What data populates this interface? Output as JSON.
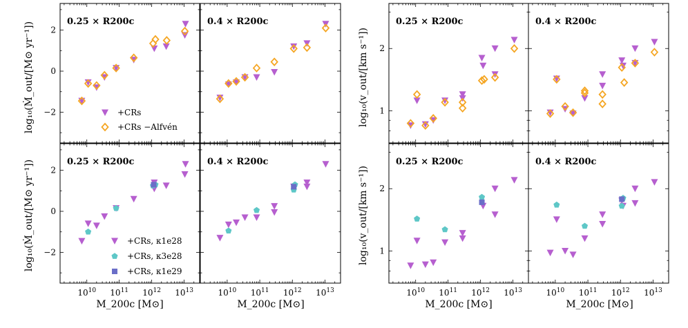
{
  "figure": {
    "left_ylabel": "log₁₀(Ṁ_out/[M⊙ yr⁻¹])",
    "right_ylabel": "log₁₀(v_out/[km s⁻¹])",
    "xlabel": "M_200c [M⊙]"
  },
  "colors": {
    "crs": "#b65fcf",
    "alfven": "#f5a623",
    "k3e28": "#5ec7c7",
    "k1e29": "#6a6ec8"
  },
  "legends": {
    "top": [
      "+CRs",
      "+CRs −Alfvén"
    ],
    "bottom": [
      "+CRs, κ1e28",
      "+CRs, κ3e28",
      "+CRs, κ1e29"
    ]
  },
  "chart_data": [
    {
      "id": "mdot-top-025",
      "type": "scatter",
      "panel_label": "0.25 × R200c",
      "xscale": "log",
      "xlim": [
        1500000000.0,
        30000000000000.0
      ],
      "ylim": [
        -3.5,
        3.3
      ],
      "series": [
        {
          "name": "+CRs",
          "marker": "triangle-down",
          "color_key": "crs",
          "points": [
            [
              7000000000.0,
              -1.45
            ],
            [
              11000000000.0,
              -0.55
            ],
            [
              20000000000.0,
              -0.8
            ],
            [
              35000000000.0,
              -0.3
            ],
            [
              80000000000.0,
              0.15
            ],
            [
              280000000000.0,
              0.55
            ],
            [
              1200000000000.0,
              1.1
            ],
            [
              2800000000000.0,
              1.2
            ],
            [
              11000000000000.0,
              2.3
            ],
            [
              10500000000000.0,
              1.75
            ]
          ]
        },
        {
          "name": "+CRs −Alfvén",
          "marker": "diamond-open",
          "color_key": "alfven",
          "points": [
            [
              7000000000.0,
              -1.45
            ],
            [
              11000000000.0,
              -0.6
            ],
            [
              20000000000.0,
              -0.7
            ],
            [
              35000000000.0,
              -0.2
            ],
            [
              80000000000.0,
              0.15
            ],
            [
              280000000000.0,
              0.65
            ],
            [
              1100000000000.0,
              1.35
            ],
            [
              1300000000000.0,
              1.55
            ],
            [
              2900000000000.0,
              1.5
            ],
            [
              10500000000000.0,
              1.95
            ]
          ]
        }
      ]
    },
    {
      "id": "mdot-top-04",
      "type": "scatter",
      "panel_label": "0.4 × R200c",
      "xscale": "log",
      "xlim": [
        1500000000.0,
        30000000000000.0
      ],
      "ylim": [
        -3.5,
        3.3
      ],
      "series": [
        {
          "name": "+CRs",
          "marker": "triangle-down",
          "color_key": "crs",
          "points": [
            [
              6000000000.0,
              -1.3
            ],
            [
              11000000000.0,
              -0.65
            ],
            [
              19000000000.0,
              -0.55
            ],
            [
              35000000000.0,
              -0.3
            ],
            [
              80000000000.0,
              -0.3
            ],
            [
              280000000000.0,
              -0.05
            ],
            [
              1100000000000.0,
              1.2
            ],
            [
              2800000000000.0,
              1.35
            ],
            [
              10500000000000.0,
              2.3
            ]
          ]
        },
        {
          "name": "+CRs −Alfvén",
          "marker": "diamond-open",
          "color_key": "alfven",
          "points": [
            [
              6000000000.0,
              -1.35
            ],
            [
              11000000000.0,
              -0.6
            ],
            [
              19000000000.0,
              -0.5
            ],
            [
              35000000000.0,
              -0.3
            ],
            [
              80000000000.0,
              0.15
            ],
            [
              280000000000.0,
              0.45
            ],
            [
              1100000000000.0,
              1.1
            ],
            [
              2800000000000.0,
              1.15
            ],
            [
              10500000000000.0,
              2.1
            ]
          ]
        }
      ]
    },
    {
      "id": "vout-top-025",
      "type": "scatter",
      "panel_label": "0.25 × R200c",
      "xscale": "log",
      "yscale": "log",
      "xlim": [
        1500000000.0,
        30000000000000.0
      ],
      "ylim": [
        0.7,
        3.3
      ],
      "yticks": [
        1,
        2
      ],
      "series": [
        {
          "name": "+CRs",
          "marker": "triangle-down",
          "color_key": "crs",
          "points": [
            [
              7000000000.0,
              0.85
            ],
            [
              11000000000.0,
              1.12
            ],
            [
              20000000000.0,
              0.86
            ],
            [
              35000000000.0,
              0.9
            ],
            [
              80000000000.0,
              1.12
            ],
            [
              280000000000.0,
              1.2
            ],
            [
              280000000000.0,
              1.15
            ],
            [
              1100000000000.0,
              1.8
            ],
            [
              1200000000000.0,
              1.65
            ],
            [
              2800000000000.0,
              2.0
            ],
            [
              2800000000000.0,
              1.5
            ],
            [
              11000000000000.0,
              2.2
            ]
          ]
        },
        {
          "name": "+CRs −Alfvén",
          "marker": "diamond-open",
          "color_key": "alfven",
          "points": [
            [
              7000000000.0,
              0.87
            ],
            [
              11000000000.0,
              1.2
            ],
            [
              20000000000.0,
              0.85
            ],
            [
              35000000000.0,
              0.92
            ],
            [
              80000000000.0,
              1.1
            ],
            [
              280000000000.0,
              1.1
            ],
            [
              280000000000.0,
              1.03
            ],
            [
              1100000000000.0,
              1.4
            ],
            [
              1300000000000.0,
              1.42
            ],
            [
              2800000000000.0,
              1.45
            ],
            [
              11000000000000.0,
              2.0
            ]
          ]
        }
      ]
    },
    {
      "id": "vout-top-04",
      "type": "scatter",
      "panel_label": "0.4 × R200c",
      "xscale": "log",
      "yscale": "log",
      "xlim": [
        1500000000.0,
        30000000000000.0
      ],
      "ylim": [
        0.7,
        3.3
      ],
      "yticks": [
        1,
        2
      ],
      "series": [
        {
          "name": "+CRs",
          "marker": "triangle-down",
          "color_key": "crs",
          "points": [
            [
              7000000000.0,
              0.98
            ],
            [
              11000000000.0,
              1.43
            ],
            [
              20000000000.0,
              1.02
            ],
            [
              35000000000.0,
              0.97
            ],
            [
              80000000000.0,
              1.15
            ],
            [
              280000000000.0,
              1.5
            ],
            [
              280000000000.0,
              1.32
            ],
            [
              1100000000000.0,
              1.75
            ],
            [
              1200000000000.0,
              1.65
            ],
            [
              2800000000000.0,
              2.0
            ],
            [
              2800000000000.0,
              1.7
            ],
            [
              11000000000000.0,
              2.15
            ]
          ]
        },
        {
          "name": "+CRs −Alfvén",
          "marker": "diamond-open",
          "color_key": "alfven",
          "points": [
            [
              7000000000.0,
              0.97
            ],
            [
              11000000000.0,
              1.42
            ],
            [
              20000000000.0,
              1.05
            ],
            [
              35000000000.0,
              0.98
            ],
            [
              80000000000.0,
              1.25
            ],
            [
              80000000000.0,
              1.22
            ],
            [
              280000000000.0,
              1.2
            ],
            [
              280000000000.0,
              1.08
            ],
            [
              1100000000000.0,
              1.62
            ],
            [
              1300000000000.0,
              1.37
            ],
            [
              2800000000000.0,
              1.7
            ],
            [
              11000000000000.0,
              1.92
            ]
          ]
        }
      ]
    },
    {
      "id": "mdot-bottom-025",
      "type": "scatter",
      "panel_label": "0.25 × R200c",
      "xscale": "log",
      "xlim": [
        1500000000.0,
        30000000000000.0
      ],
      "ylim": [
        -3.5,
        3.3
      ],
      "series": [
        {
          "name": "+CRs, κ1e28",
          "marker": "triangle-down",
          "color_key": "crs",
          "points": [
            [
              7000000000.0,
              -1.45
            ],
            [
              11000000000.0,
              -0.6
            ],
            [
              20000000000.0,
              -0.7
            ],
            [
              35000000000.0,
              -0.25
            ],
            [
              80000000000.0,
              0.15
            ],
            [
              280000000000.0,
              0.6
            ],
            [
              1200000000000.0,
              1.4
            ],
            [
              1200000000000.0,
              1.1
            ],
            [
              2800000000000.0,
              1.25
            ],
            [
              11000000000000.0,
              2.3
            ],
            [
              10500000000000.0,
              1.8
            ]
          ]
        },
        {
          "name": "+CRs, κ3e28",
          "marker": "pentagon",
          "color_key": "k3e28",
          "points": [
            [
              11000000000.0,
              -1.0
            ],
            [
              80000000000.0,
              0.15
            ],
            [
              1100000000000.0,
              1.25
            ],
            [
              1300000000000.0,
              1.3
            ]
          ]
        },
        {
          "name": "+CRs, κ1e29",
          "marker": "square",
          "color_key": "k1e29",
          "points": [
            [
              1150000000000.0,
              1.3
            ]
          ]
        }
      ]
    },
    {
      "id": "mdot-bottom-04",
      "type": "scatter",
      "panel_label": "0.4 × R200c",
      "xscale": "log",
      "xlim": [
        1500000000.0,
        30000000000000.0
      ],
      "ylim": [
        -3.5,
        3.3
      ],
      "series": [
        {
          "name": "+CRs, κ1e28",
          "marker": "triangle-down",
          "color_key": "crs",
          "points": [
            [
              6000000000.0,
              -1.3
            ],
            [
              11000000000.0,
              -0.65
            ],
            [
              19000000000.0,
              -0.55
            ],
            [
              35000000000.0,
              -0.3
            ],
            [
              80000000000.0,
              -0.3
            ],
            [
              280000000000.0,
              0.25
            ],
            [
              280000000000.0,
              -0.05
            ],
            [
              1100000000000.0,
              1.2
            ],
            [
              2800000000000.0,
              1.4
            ],
            [
              2800000000000.0,
              1.2
            ],
            [
              10500000000000.0,
              2.3
            ]
          ]
        },
        {
          "name": "+CRs, κ3e28",
          "marker": "pentagon",
          "color_key": "k3e28",
          "points": [
            [
              11000000000.0,
              -0.95
            ],
            [
              80000000000.0,
              0.05
            ],
            [
              1100000000000.0,
              1.05
            ],
            [
              1200000000000.0,
              1.3
            ]
          ]
        },
        {
          "name": "+CRs, κ1e29",
          "marker": "square",
          "color_key": "k1e29",
          "points": [
            [
              1100000000000.0,
              1.2
            ]
          ]
        }
      ]
    },
    {
      "id": "vout-bottom-025",
      "type": "scatter",
      "panel_label": "0.25 × R200c",
      "xscale": "log",
      "yscale": "log",
      "xlim": [
        1500000000.0,
        30000000000000.0
      ],
      "ylim": [
        0.7,
        3.3
      ],
      "yticks": [
        1,
        2
      ],
      "series": [
        {
          "name": "+CRs, κ1e28",
          "marker": "triangle-down",
          "color_key": "crs",
          "points": [
            [
              7000000000.0,
              0.85
            ],
            [
              11000000000.0,
              1.12
            ],
            [
              20000000000.0,
              0.86
            ],
            [
              35000000000.0,
              0.88
            ],
            [
              80000000000.0,
              1.1
            ],
            [
              280000000000.0,
              1.22
            ],
            [
              280000000000.0,
              1.15
            ],
            [
              1200000000000.0,
              1.65
            ],
            [
              2800000000000.0,
              2.0
            ],
            [
              2800000000000.0,
              1.5
            ],
            [
              11000000000000.0,
              2.2
            ]
          ]
        },
        {
          "name": "+CRs, κ3e28",
          "marker": "pentagon",
          "color_key": "k3e28",
          "points": [
            [
              11000000000.0,
              1.43
            ],
            [
              80000000000.0,
              1.27
            ],
            [
              1100000000000.0,
              1.82
            ]
          ]
        },
        {
          "name": "+CRs, κ1e29",
          "marker": "square",
          "color_key": "k1e29",
          "points": [
            [
              1100000000000.0,
              1.72
            ]
          ]
        }
      ]
    },
    {
      "id": "vout-bottom-04",
      "type": "scatter",
      "panel_label": "0.4 × R200c",
      "xscale": "log",
      "yscale": "log",
      "xlim": [
        1500000000.0,
        30000000000000.0
      ],
      "ylim": [
        0.7,
        3.3
      ],
      "yticks": [
        1,
        2
      ],
      "series": [
        {
          "name": "+CRs, κ1e28",
          "marker": "triangle-down",
          "color_key": "crs",
          "points": [
            [
              7000000000.0,
              0.98
            ],
            [
              11000000000.0,
              1.42
            ],
            [
              20000000000.0,
              1.0
            ],
            [
              35000000000.0,
              0.96
            ],
            [
              80000000000.0,
              1.15
            ],
            [
              280000000000.0,
              1.5
            ],
            [
              280000000000.0,
              1.35
            ],
            [
              1100000000000.0,
              1.75
            ],
            [
              1200000000000.0,
              1.65
            ],
            [
              2800000000000.0,
              2.0
            ],
            [
              2800000000000.0,
              1.7
            ],
            [
              11000000000000.0,
              2.15
            ]
          ]
        },
        {
          "name": "+CRs, κ3e28",
          "marker": "pentagon",
          "color_key": "k3e28",
          "points": [
            [
              11000000000.0,
              1.67
            ],
            [
              80000000000.0,
              1.32
            ],
            [
              1200000000000.0,
              1.8
            ],
            [
              1100000000000.0,
              1.65
            ]
          ]
        },
        {
          "name": "+CRs, κ1e29",
          "marker": "square",
          "color_key": "k1e29",
          "points": [
            [
              1100000000000.0,
              1.78
            ]
          ]
        }
      ]
    }
  ]
}
